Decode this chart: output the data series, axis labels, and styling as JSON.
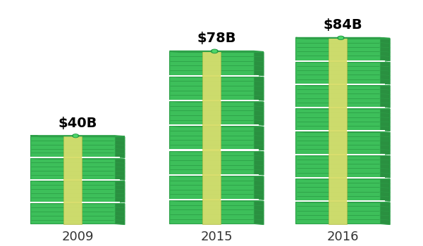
{
  "years": [
    "2009",
    "2015",
    "2016"
  ],
  "values": [
    40,
    78,
    84
  ],
  "labels": [
    "$40B",
    "$78B",
    "$84B"
  ],
  "bg_color": "#ffffff",
  "bill_green_main": "#3dbf5a",
  "bill_green_dark": "#2da048",
  "bill_green_line": "#35ad52",
  "bill_green_side": "#2a9040",
  "bill_green_top": "#4dd668",
  "bill_band_color": "#d9de6e",
  "bill_band_side": "#b8c050",
  "label_fontsize": 14,
  "year_fontsize": 13,
  "label_fontweight": "bold",
  "year_fontweight": "normal",
  "fig_width": 6.0,
  "fig_height": 3.5,
  "dpi": 100
}
